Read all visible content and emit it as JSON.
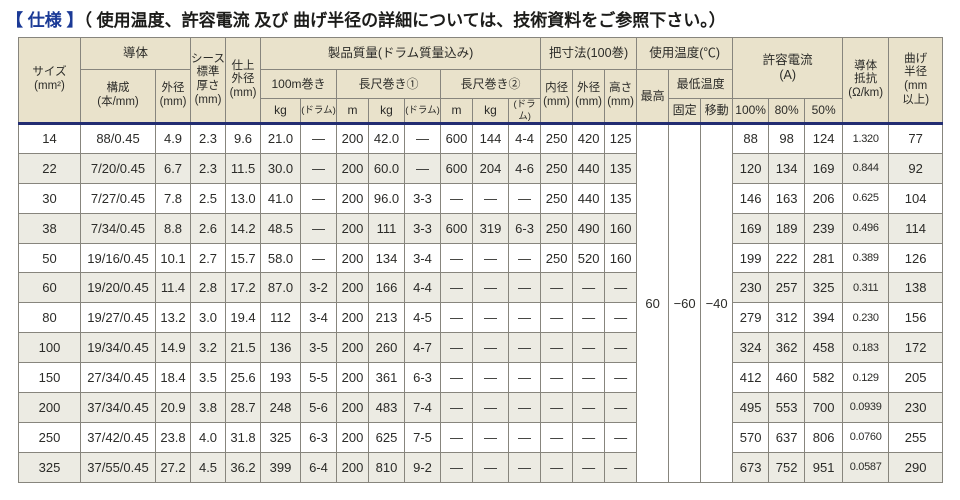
{
  "page": {
    "title_label": "【 仕様 】",
    "title_note": "（ 使用温度、許容電流 及び 曲げ半径の詳細については、技術資料をご参照下さい。）"
  },
  "colors": {
    "title_blue": "#1b3a96",
    "header_bg": "#e9e2cb",
    "stripe_bg": "#ecebe3",
    "navy_rule": "#232d72",
    "grid": "#87857d"
  },
  "table": {
    "header": {
      "size": "サイズ\n(mm²)",
      "conductor": "導体",
      "composition": "構成\n(本/mm)",
      "conductor_od": "外径\n(mm)",
      "sheath": "シース\n標準\n厚さ\n(mm)",
      "finish_od": "仕上\n外径\n(mm)",
      "weight": "製品質量(ドラム質量込み)",
      "roll100": "100m巻き",
      "long1": "長尺巻き①",
      "long2": "長尺巻き②",
      "kg": "kg",
      "drum": "(ドラム)",
      "m": "m",
      "dims": "把寸法(100巻)",
      "inner": "内径\n(mm)",
      "outer": "外径\n(mm)",
      "height": "高さ\n(mm)",
      "temp": "使用温度(℃)",
      "temp_max": "最高",
      "temp_min": "最低温度",
      "fixed": "固定",
      "moving": "移動",
      "current": "許容電流\n(A)",
      "pct100": "100%",
      "pct80": "80%",
      "pct50": "50%",
      "resistance": "導体\n抵抗\n(Ω/km)",
      "bend": "曲げ\n半径\n(mm\n以上)"
    },
    "temperature": {
      "max": "60",
      "fixed": "−60",
      "moving": "−40"
    },
    "rows": [
      [
        "14",
        "88/0.45",
        "4.9",
        "2.3",
        "9.6",
        "21.0",
        "—",
        "200",
        "42.0",
        "—",
        "600",
        "144",
        "4-4",
        "250",
        "420",
        "125",
        "88",
        "98",
        "124",
        "1.320",
        "77"
      ],
      [
        "22",
        "7/20/0.45",
        "6.7",
        "2.3",
        "11.5",
        "30.0",
        "—",
        "200",
        "60.0",
        "—",
        "600",
        "204",
        "4-6",
        "250",
        "440",
        "135",
        "120",
        "134",
        "169",
        "0.844",
        "92"
      ],
      [
        "30",
        "7/27/0.45",
        "7.8",
        "2.5",
        "13.0",
        "41.0",
        "—",
        "200",
        "96.0",
        "3-3",
        "—",
        "—",
        "—",
        "250",
        "440",
        "135",
        "146",
        "163",
        "206",
        "0.625",
        "104"
      ],
      [
        "38",
        "7/34/0.45",
        "8.8",
        "2.6",
        "14.2",
        "48.5",
        "—",
        "200",
        "111",
        "3-3",
        "600",
        "319",
        "6-3",
        "250",
        "490",
        "160",
        "169",
        "189",
        "239",
        "0.496",
        "114"
      ],
      [
        "50",
        "19/16/0.45",
        "10.1",
        "2.7",
        "15.7",
        "58.0",
        "—",
        "200",
        "134",
        "3-4",
        "—",
        "—",
        "—",
        "250",
        "520",
        "160",
        "199",
        "222",
        "281",
        "0.389",
        "126"
      ],
      [
        "60",
        "19/20/0.45",
        "11.4",
        "2.8",
        "17.2",
        "87.0",
        "3-2",
        "200",
        "166",
        "4-4",
        "—",
        "—",
        "—",
        "—",
        "—",
        "—",
        "230",
        "257",
        "325",
        "0.311",
        "138"
      ],
      [
        "80",
        "19/27/0.45",
        "13.2",
        "3.0",
        "19.4",
        "112",
        "3-4",
        "200",
        "213",
        "4-5",
        "—",
        "—",
        "—",
        "—",
        "—",
        "—",
        "279",
        "312",
        "394",
        "0.230",
        "156"
      ],
      [
        "100",
        "19/34/0.45",
        "14.9",
        "3.2",
        "21.5",
        "136",
        "3-5",
        "200",
        "260",
        "4-7",
        "—",
        "—",
        "—",
        "—",
        "—",
        "—",
        "324",
        "362",
        "458",
        "0.183",
        "172"
      ],
      [
        "150",
        "27/34/0.45",
        "18.4",
        "3.5",
        "25.6",
        "193",
        "5-5",
        "200",
        "361",
        "6-3",
        "—",
        "—",
        "—",
        "—",
        "—",
        "—",
        "412",
        "460",
        "582",
        "0.129",
        "205"
      ],
      [
        "200",
        "37/34/0.45",
        "20.9",
        "3.8",
        "28.7",
        "248",
        "5-6",
        "200",
        "483",
        "7-4",
        "—",
        "—",
        "—",
        "—",
        "—",
        "—",
        "495",
        "553",
        "700",
        "0.0939",
        "230"
      ],
      [
        "250",
        "37/42/0.45",
        "23.8",
        "4.0",
        "31.8",
        "325",
        "6-3",
        "200",
        "625",
        "7-5",
        "—",
        "—",
        "—",
        "—",
        "—",
        "—",
        "570",
        "637",
        "806",
        "0.0760",
        "255"
      ],
      [
        "325",
        "37/55/0.45",
        "27.2",
        "4.5",
        "36.2",
        "399",
        "6-4",
        "200",
        "810",
        "9-2",
        "—",
        "—",
        "—",
        "—",
        "—",
        "—",
        "673",
        "752",
        "951",
        "0.0587",
        "290"
      ]
    ]
  }
}
